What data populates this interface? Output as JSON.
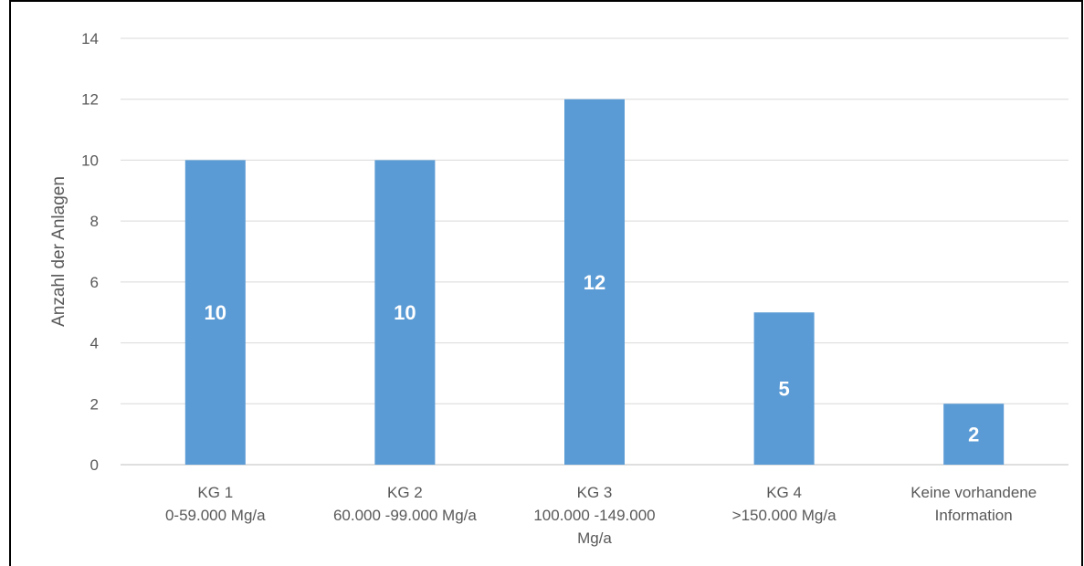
{
  "chart_data": {
    "type": "bar",
    "title": "",
    "xlabel": "",
    "ylabel": "Anzahl der Anlagen",
    "ylim": [
      0,
      14
    ],
    "yticks": [
      0,
      2,
      4,
      6,
      8,
      10,
      12,
      14
    ],
    "grid": true,
    "categories": [
      [
        "KG 1",
        "0-59.000 Mg/a"
      ],
      [
        "KG 2",
        "60.000 -99.000 Mg/a"
      ],
      [
        "KG 3",
        "100.000 -149.000",
        "Mg/a"
      ],
      [
        "KG  4",
        ">150.000 Mg/a"
      ],
      [
        "Keine vorhandene",
        "Information"
      ]
    ],
    "values": [
      10,
      10,
      12,
      5,
      2
    ],
    "data_labels": [
      "10",
      "10",
      "12",
      "5",
      "2"
    ],
    "colors": {
      "bar": "#5b9bd5",
      "grid": "#d9d9d9",
      "axis": "#bfbfbf",
      "text": "#595959",
      "label": "#ffffff"
    }
  }
}
